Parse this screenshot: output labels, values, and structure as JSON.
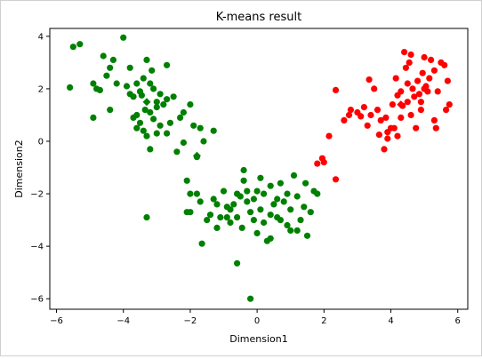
{
  "chart_data": {
    "type": "scatter",
    "title": "K-means result",
    "xlabel": "Dimension1",
    "ylabel": "Dimension2",
    "xlim": [
      -6.2,
      6.3
    ],
    "ylim": [
      -6.4,
      4.3
    ],
    "xticks": [
      -6,
      -4,
      -2,
      0,
      2,
      4,
      6
    ],
    "yticks": [
      -6,
      -4,
      -2,
      0,
      2,
      4
    ],
    "grid": false,
    "series": [
      {
        "color": "#008000",
        "points": [
          [
            -5.6,
            2.05
          ],
          [
            -5.5,
            3.6
          ],
          [
            -5.3,
            3.7
          ],
          [
            -4.9,
            2.2
          ],
          [
            -4.8,
            2.0
          ],
          [
            -4.6,
            3.25
          ],
          [
            -4.5,
            2.5
          ],
          [
            -4.4,
            2.8
          ],
          [
            -4.3,
            3.1
          ],
          [
            -4.2,
            2.2
          ],
          [
            -4.4,
            1.2
          ],
          [
            -4.9,
            0.9
          ],
          [
            -4.7,
            1.95
          ],
          [
            -4.0,
            3.95
          ],
          [
            -3.6,
            2.2
          ],
          [
            -3.8,
            2.8
          ],
          [
            -3.5,
            1.9
          ],
          [
            -3.4,
            2.4
          ],
          [
            -3.2,
            2.2
          ],
          [
            -3.7,
            1.7
          ],
          [
            -3.9,
            2.1
          ],
          [
            -3.1,
            2.0
          ],
          [
            -3.0,
            1.5
          ],
          [
            -2.9,
            1.8
          ],
          [
            -2.7,
            2.9
          ],
          [
            -3.3,
            3.1
          ],
          [
            -3.15,
            2.7
          ],
          [
            -3.35,
            1.2
          ],
          [
            -3.45,
            1.75
          ],
          [
            -3.0,
            1.3
          ],
          [
            -2.7,
            1.6
          ],
          [
            -2.8,
            1.4
          ],
          [
            -2.5,
            1.7
          ],
          [
            -2.2,
            1.1
          ],
          [
            -2.3,
            0.9
          ],
          [
            -2.0,
            1.4
          ],
          [
            -1.9,
            0.6
          ],
          [
            -1.7,
            0.5
          ],
          [
            -1.6,
            0.0
          ],
          [
            -1.3,
            0.4
          ],
          [
            -2.6,
            0.7
          ],
          [
            -2.9,
            0.6
          ],
          [
            -3.0,
            0.3
          ],
          [
            -3.2,
            -0.3
          ],
          [
            -3.6,
            1.0
          ],
          [
            -3.5,
            0.7
          ],
          [
            -3.4,
            0.4
          ],
          [
            -3.7,
            0.9
          ],
          [
            -2.4,
            -0.4
          ],
          [
            -2.2,
            -0.05
          ],
          [
            -3.1,
            0.85
          ],
          [
            -3.6,
            0.5
          ],
          [
            -3.2,
            1.1
          ],
          [
            -3.8,
            1.8
          ],
          [
            -3.3,
            0.2
          ],
          [
            -1.8,
            -0.6
          ],
          [
            -2.7,
            0.3
          ],
          [
            -2.1,
            -1.5
          ],
          [
            -2.0,
            -2.0
          ],
          [
            -2.1,
            -2.7
          ],
          [
            -2.0,
            -2.7
          ],
          [
            -1.8,
            -2.0
          ],
          [
            -1.7,
            -2.3
          ],
          [
            -1.65,
            -3.9
          ],
          [
            -1.4,
            -2.8
          ],
          [
            -1.3,
            -2.2
          ],
          [
            -1.2,
            -3.3
          ],
          [
            -1.1,
            -2.9
          ],
          [
            -1.2,
            -2.4
          ],
          [
            -0.9,
            -2.5
          ],
          [
            -0.8,
            -2.6
          ],
          [
            -0.7,
            -2.4
          ],
          [
            -0.6,
            -2.9
          ],
          [
            -0.5,
            -2.1
          ],
          [
            -0.4,
            -1.5
          ],
          [
            -0.4,
            -1.1
          ],
          [
            -0.3,
            -1.9
          ],
          [
            -0.2,
            -2.7
          ],
          [
            -0.1,
            -2.2
          ],
          [
            -0.1,
            -3.0
          ],
          [
            0.0,
            -3.5
          ],
          [
            0.1,
            -2.6
          ],
          [
            0.2,
            -3.1
          ],
          [
            0.2,
            -2.0
          ],
          [
            0.3,
            -3.8
          ],
          [
            0.4,
            -2.8
          ],
          [
            0.4,
            -1.7
          ],
          [
            0.5,
            -2.4
          ],
          [
            0.6,
            -2.9
          ],
          [
            0.7,
            -1.6
          ],
          [
            0.8,
            -2.3
          ],
          [
            0.9,
            -3.2
          ],
          [
            1.0,
            -2.6
          ],
          [
            1.1,
            -1.3
          ],
          [
            1.2,
            -2.1
          ],
          [
            1.3,
            -3.0
          ],
          [
            1.4,
            -2.5
          ],
          [
            1.5,
            -3.6
          ],
          [
            1.6,
            -2.7
          ],
          [
            1.7,
            -1.9
          ],
          [
            -0.3,
            -2.3
          ],
          [
            -0.6,
            -2.0
          ],
          [
            -0.9,
            -2.9
          ],
          [
            0.1,
            -1.4
          ],
          [
            0.6,
            -2.2
          ],
          [
            1.8,
            -2.0
          ],
          [
            1.0,
            -3.4
          ],
          [
            -0.2,
            -6.0
          ],
          [
            -0.6,
            -4.65
          ],
          [
            -3.3,
            -2.9
          ],
          [
            -0.8,
            -3.1
          ],
          [
            0.4,
            -3.7
          ],
          [
            1.2,
            -3.4
          ],
          [
            -1.5,
            -3.0
          ],
          [
            0.9,
            -2.0
          ],
          [
            0.0,
            -1.9
          ],
          [
            -1.0,
            -1.9
          ],
          [
            0.7,
            -3.0
          ],
          [
            1.45,
            -1.6
          ],
          [
            -0.45,
            -3.3
          ]
        ]
      },
      {
        "color": "#ff0000",
        "points": [
          [
            1.8,
            -0.85
          ],
          [
            1.95,
            -0.65
          ],
          [
            2.0,
            -0.8
          ],
          [
            2.15,
            0.2
          ],
          [
            2.35,
            -1.45
          ],
          [
            2.35,
            1.95
          ],
          [
            2.6,
            0.8
          ],
          [
            2.8,
            1.2
          ],
          [
            3.0,
            1.1
          ],
          [
            3.1,
            0.95
          ],
          [
            3.2,
            1.3
          ],
          [
            3.3,
            0.6
          ],
          [
            3.4,
            1.0
          ],
          [
            3.5,
            2.0
          ],
          [
            3.6,
            1.2
          ],
          [
            3.65,
            0.25
          ],
          [
            3.7,
            0.8
          ],
          [
            3.8,
            -0.3
          ],
          [
            3.85,
            0.9
          ],
          [
            3.9,
            0.1
          ],
          [
            4.0,
            0.5
          ],
          [
            4.05,
            1.4
          ],
          [
            4.1,
            0.5
          ],
          [
            4.15,
            2.4
          ],
          [
            4.2,
            0.2
          ],
          [
            4.3,
            1.9
          ],
          [
            4.35,
            1.35
          ],
          [
            4.4,
            3.4
          ],
          [
            4.45,
            2.8
          ],
          [
            4.5,
            2.2
          ],
          [
            4.55,
            3.0
          ],
          [
            4.6,
            3.3
          ],
          [
            4.6,
            1.0
          ],
          [
            4.65,
            2.0
          ],
          [
            4.7,
            1.7
          ],
          [
            4.75,
            0.5
          ],
          [
            4.8,
            2.3
          ],
          [
            4.85,
            1.8
          ],
          [
            4.9,
            1.2
          ],
          [
            4.95,
            2.6
          ],
          [
            5.0,
            3.2
          ],
          [
            5.05,
            2.1
          ],
          [
            5.1,
            1.9
          ],
          [
            5.15,
            2.4
          ],
          [
            5.2,
            3.1
          ],
          [
            5.3,
            2.7
          ],
          [
            5.4,
            1.9
          ],
          [
            5.5,
            3.0
          ],
          [
            5.6,
            2.9
          ],
          [
            5.65,
            1.2
          ],
          [
            5.7,
            2.3
          ],
          [
            5.75,
            1.4
          ],
          [
            5.3,
            0.8
          ],
          [
            5.35,
            0.5
          ],
          [
            4.3,
            0.9
          ],
          [
            3.9,
            0.35
          ],
          [
            4.2,
            1.75
          ],
          [
            4.9,
            1.5
          ],
          [
            3.35,
            2.35
          ],
          [
            2.75,
            1.0
          ],
          [
            4.5,
            1.5
          ],
          [
            5.0,
            2.0
          ]
        ]
      }
    ],
    "centroids": [
      {
        "color": "#008000",
        "x": -3.3,
        "y": 1.5
      },
      {
        "color": "#008000",
        "x": -1.8,
        "y": -0.55
      },
      {
        "color": "#ff0000",
        "x": 4.3,
        "y": 1.4
      }
    ]
  }
}
